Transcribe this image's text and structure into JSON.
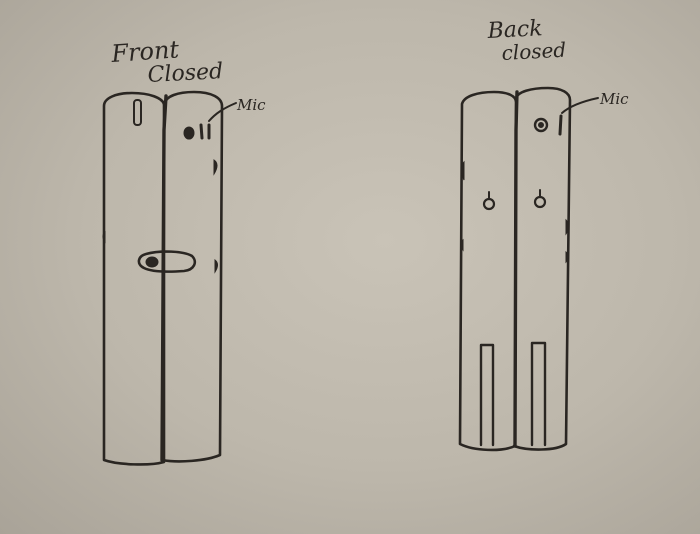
{
  "views": [
    {
      "title_line1": "Front",
      "title_line2": "Closed",
      "mic_label": "Mic"
    },
    {
      "title_line1": "Back",
      "title_line2": "closed",
      "mic_label": "Mic"
    }
  ]
}
